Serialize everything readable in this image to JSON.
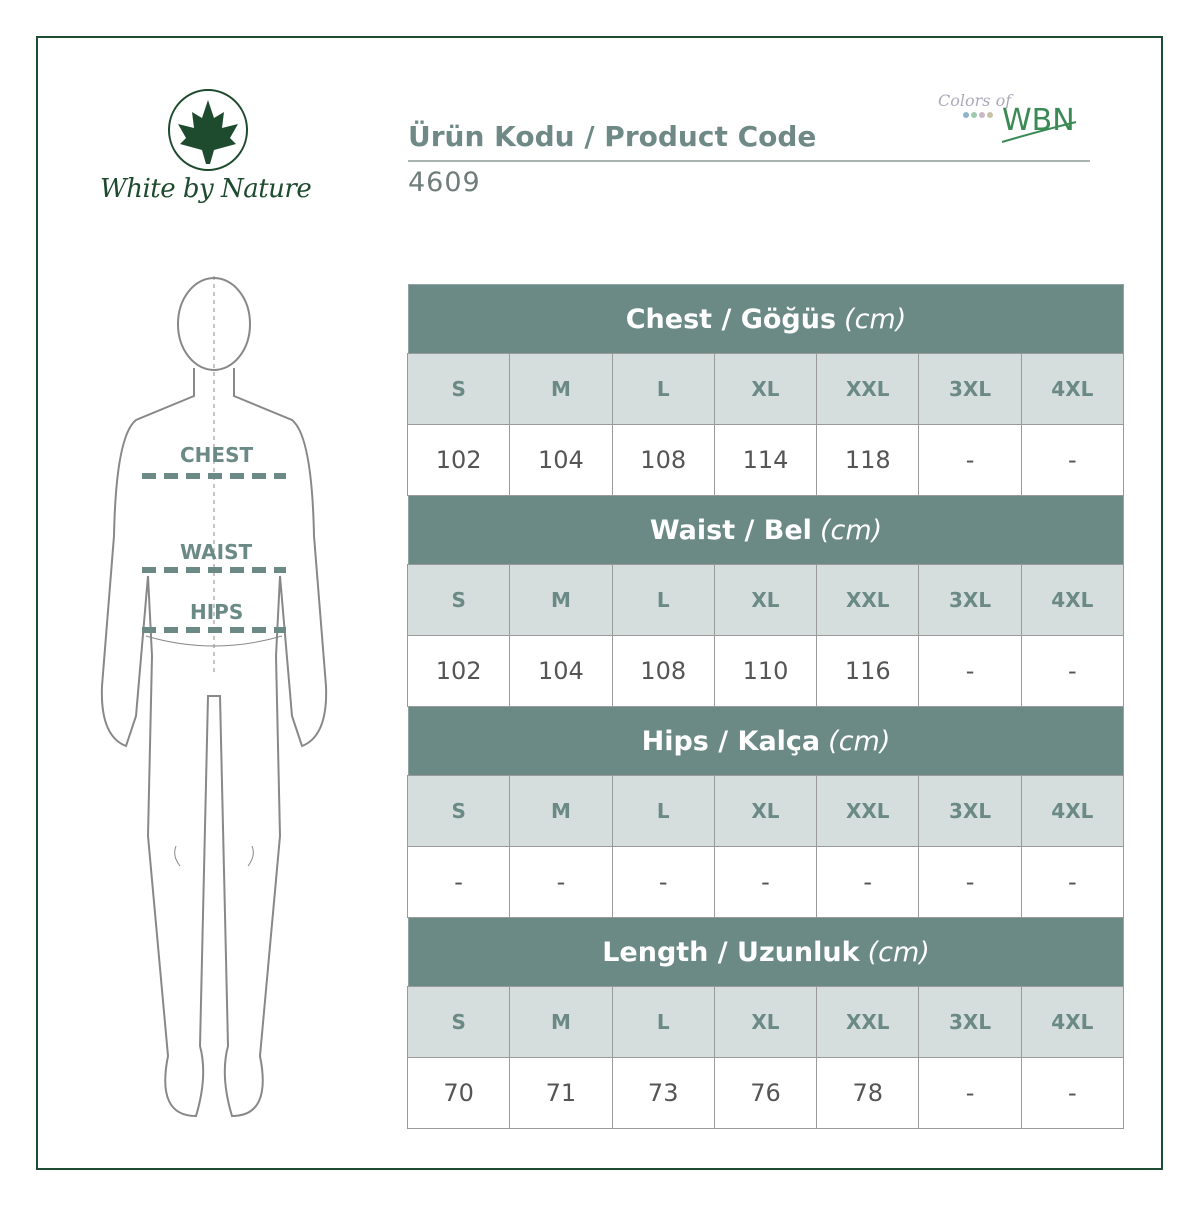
{
  "brand": {
    "name": "White by Nature",
    "sub_logo": "Colors of WBN"
  },
  "header": {
    "title": "Ürün Kodu / Product Code",
    "code": "4609"
  },
  "figure": {
    "labels": {
      "chest": "CHEST",
      "waist": "WAIST",
      "hips": "HIPS"
    }
  },
  "colors": {
    "accent": "#6b8a86",
    "header_bg": "#d5dedd",
    "brand_green": "#1e4a2e"
  },
  "sections": [
    {
      "title": "Chest / Göğüs",
      "unit": "(cm)",
      "sizes": [
        "S",
        "M",
        "L",
        "XL",
        "XXL",
        "3XL",
        "4XL"
      ],
      "values": [
        "102",
        "104",
        "108",
        "114",
        "118",
        "-",
        "-"
      ]
    },
    {
      "title": "Waist / Bel",
      "unit": "(cm)",
      "sizes": [
        "S",
        "M",
        "L",
        "XL",
        "XXL",
        "3XL",
        "4XL"
      ],
      "values": [
        "102",
        "104",
        "108",
        "110",
        "116",
        "-",
        "-"
      ]
    },
    {
      "title": "Hips / Kalça",
      "unit": "(cm)",
      "sizes": [
        "S",
        "M",
        "L",
        "XL",
        "XXL",
        "3XL",
        "4XL"
      ],
      "values": [
        "-",
        "-",
        "-",
        "-",
        "-",
        "-",
        "-"
      ]
    },
    {
      "title": "Length / Uzunluk",
      "unit": "(cm)",
      "sizes": [
        "S",
        "M",
        "L",
        "XL",
        "XXL",
        "3XL",
        "4XL"
      ],
      "values": [
        "70",
        "71",
        "73",
        "76",
        "78",
        "-",
        "-"
      ]
    }
  ]
}
